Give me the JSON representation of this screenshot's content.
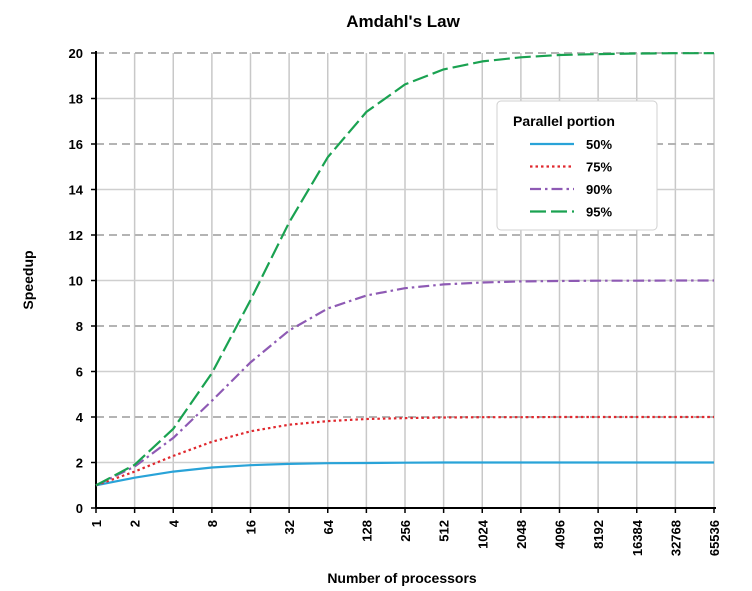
{
  "chart_data": {
    "type": "line",
    "title": "Amdahl's Law",
    "xlabel": "Number of processors",
    "ylabel": "Speedup",
    "x_scale": "log2",
    "categories": [
      "1",
      "2",
      "4",
      "8",
      "16",
      "32",
      "64",
      "128",
      "256",
      "512",
      "1024",
      "2048",
      "4096",
      "8192",
      "16384",
      "32768",
      "65536"
    ],
    "ylim": [
      0,
      20
    ],
    "yticks": [
      0,
      2,
      4,
      6,
      8,
      10,
      12,
      14,
      16,
      18,
      20
    ],
    "grid": "on (dashed major horizontal, solid major vertical)",
    "legend": {
      "title": "Parallel portion",
      "position": "top-right"
    },
    "series": [
      {
        "name": "50%",
        "color": "#29a3d8",
        "dash": "solid",
        "values": [
          1.0,
          1.33,
          1.6,
          1.78,
          1.88,
          1.94,
          1.97,
          1.98,
          1.99,
          2.0,
          2.0,
          2.0,
          2.0,
          2.0,
          2.0,
          2.0,
          2.0
        ]
      },
      {
        "name": "75%",
        "color": "#e0282e",
        "dash": "dotted",
        "values": [
          1.0,
          1.6,
          2.29,
          2.91,
          3.37,
          3.66,
          3.82,
          3.91,
          3.95,
          3.98,
          3.99,
          3.99,
          4.0,
          4.0,
          4.0,
          4.0,
          4.0
        ]
      },
      {
        "name": "90%",
        "color": "#8e5ab4",
        "dash": "dash-dot",
        "values": [
          1.0,
          1.82,
          3.08,
          4.71,
          6.4,
          7.8,
          8.77,
          9.34,
          9.66,
          9.83,
          9.91,
          9.96,
          9.98,
          9.99,
          9.99,
          10.0,
          10.0
        ]
      },
      {
        "name": "95%",
        "color": "#1aa251",
        "dash": "long-dash",
        "values": [
          1.0,
          1.9,
          3.48,
          5.93,
          9.14,
          12.55,
          15.42,
          17.41,
          18.62,
          19.28,
          19.63,
          19.81,
          19.91,
          19.95,
          19.98,
          19.99,
          19.99
        ]
      }
    ]
  }
}
